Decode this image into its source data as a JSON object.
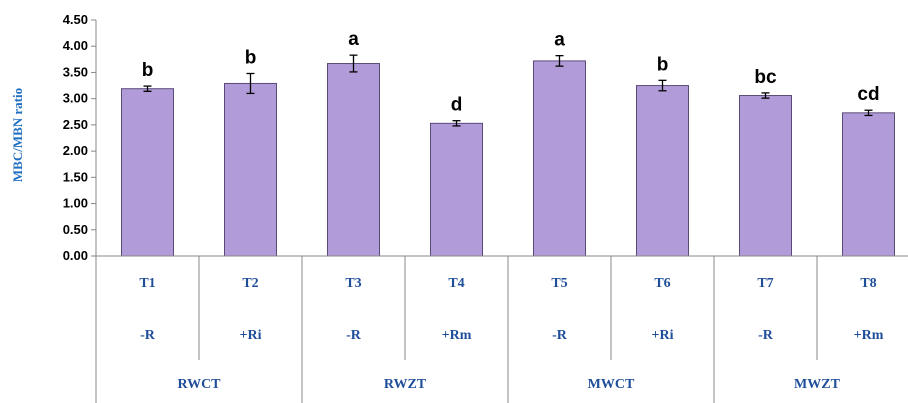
{
  "chart_data": {
    "type": "bar",
    "ylabel": "MBC/MBN ratio",
    "ylim": [
      0,
      4.5
    ],
    "yticks": [
      "0.00",
      "0.50",
      "1.00",
      "1.50",
      "2.00",
      "2.50",
      "3.00",
      "3.50",
      "4.00",
      "4.50"
    ],
    "categories": [
      "T1",
      "T2",
      "T3",
      "T4",
      "T5",
      "T6",
      "T7",
      "T8"
    ],
    "sublabels": [
      "-R",
      "+Ri",
      "-R",
      "+Rm",
      "-R",
      "+Ri",
      "-R",
      "+Rm"
    ],
    "groups": [
      "RWCT",
      "RWZT",
      "MWCT",
      "MWZT"
    ],
    "values": [
      3.19,
      3.29,
      3.67,
      2.53,
      3.72,
      3.25,
      3.06,
      2.73
    ],
    "errors": [
      0.05,
      0.19,
      0.16,
      0.05,
      0.1,
      0.1,
      0.05,
      0.05
    ],
    "significance": [
      "b",
      "b",
      "a",
      "d",
      "a",
      "b",
      "bc",
      "cd"
    ],
    "bar_color": "#b19cd9",
    "bar_edge": "#5a4a7a",
    "grid": false
  }
}
